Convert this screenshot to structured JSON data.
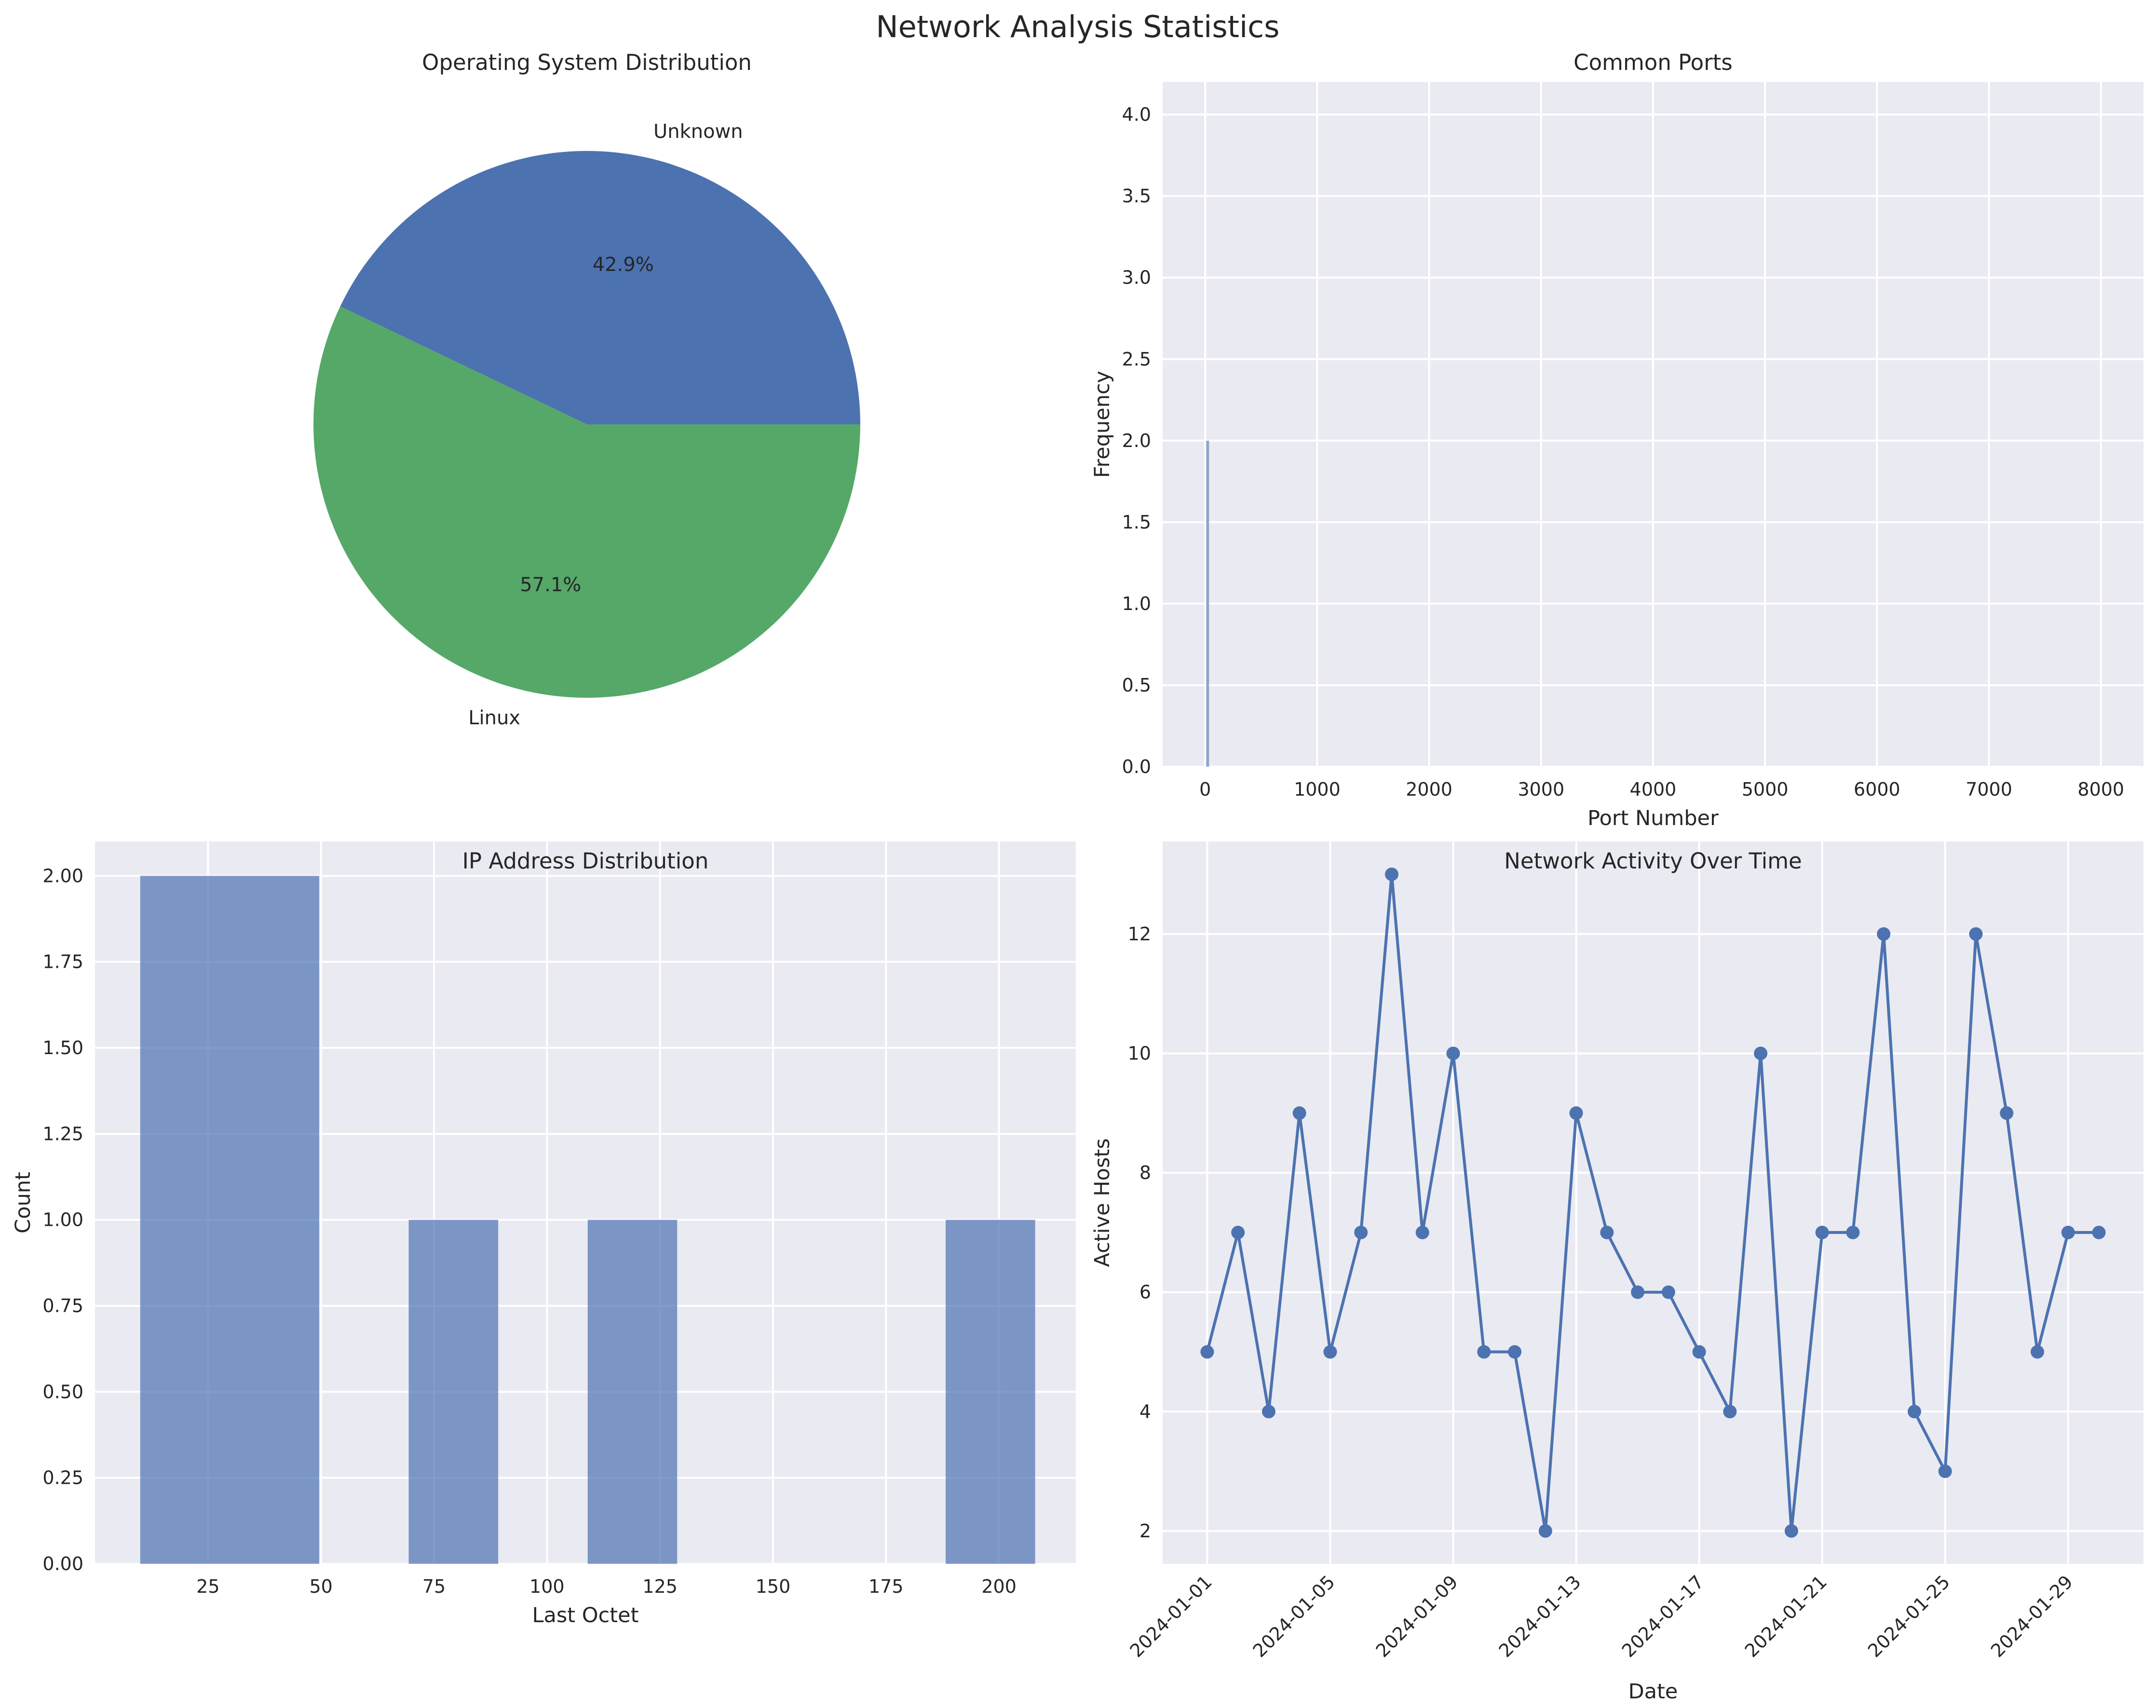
{
  "figure": {
    "title": "Network Analysis Statistics"
  },
  "colors": {
    "bg": "#eaeaf2",
    "grid": "#ffffff",
    "blue": "#4c72b0",
    "green": "#55a868",
    "hist": "#7b94c1"
  },
  "chart_data": [
    {
      "type": "pie",
      "title": "Operating System Distribution",
      "labels": [
        "Unknown",
        "Linux"
      ],
      "values": [
        42.9,
        57.1
      ],
      "autopct": [
        "42.9%",
        "57.1%"
      ],
      "colors": [
        "#4c72b0",
        "#55a868"
      ]
    },
    {
      "type": "bar",
      "title": "Common Ports",
      "xlabel": "Port Number",
      "ylabel": "Frequency",
      "xlim": [
        -380,
        8380
      ],
      "ylim": [
        0,
        4.2
      ],
      "xticks": [
        0,
        1000,
        2000,
        3000,
        4000,
        5000,
        6000,
        7000,
        8000
      ],
      "yticks": [
        "0.0",
        "0.5",
        "1.0",
        "1.5",
        "2.0",
        "2.5",
        "3.0",
        "3.5",
        "4.0"
      ],
      "bars": [
        {
          "x": 22,
          "value": 2
        }
      ],
      "grid": true
    },
    {
      "type": "bar",
      "title": "IP Address Distribution",
      "xlabel": "Last Octet",
      "ylabel": "Count",
      "xlim": [
        0,
        217
      ],
      "ylim": [
        0,
        2.1
      ],
      "xticks": [
        25,
        50,
        75,
        100,
        125,
        150,
        175,
        200
      ],
      "yticks": [
        "0.00",
        "0.25",
        "0.50",
        "0.75",
        "1.00",
        "1.25",
        "1.50",
        "1.75",
        "2.00"
      ],
      "bins": [
        {
          "from": 10,
          "to": 49.6,
          "count": 2
        },
        {
          "from": 69.4,
          "to": 89.2,
          "count": 1
        },
        {
          "from": 109,
          "to": 128.8,
          "count": 1
        },
        {
          "from": 188.2,
          "to": 208,
          "count": 1
        }
      ],
      "grid": true
    },
    {
      "type": "line",
      "title": "Network Activity Over Time",
      "xlabel": "Date",
      "ylabel": "Active Hosts",
      "ylim": [
        1.45,
        13.55
      ],
      "yticks": [
        "2",
        "4",
        "6",
        "8",
        "10",
        "12"
      ],
      "xticks": [
        "2024-01-01",
        "2024-01-05",
        "2024-01-09",
        "2024-01-13",
        "2024-01-17",
        "2024-01-21",
        "2024-01-25",
        "2024-01-29"
      ],
      "x": [
        "2024-01-01",
        "2024-01-02",
        "2024-01-03",
        "2024-01-04",
        "2024-01-05",
        "2024-01-06",
        "2024-01-07",
        "2024-01-08",
        "2024-01-09",
        "2024-01-10",
        "2024-01-11",
        "2024-01-12",
        "2024-01-13",
        "2024-01-14",
        "2024-01-15",
        "2024-01-16",
        "2024-01-17",
        "2024-01-18",
        "2024-01-19",
        "2024-01-20",
        "2024-01-21",
        "2024-01-22",
        "2024-01-23",
        "2024-01-24",
        "2024-01-25",
        "2024-01-26",
        "2024-01-27",
        "2024-01-28",
        "2024-01-29",
        "2024-01-30"
      ],
      "values": [
        5,
        7,
        4,
        9,
        5,
        7,
        13,
        7,
        10,
        5,
        5,
        2,
        9,
        7,
        6,
        6,
        5,
        4,
        10,
        2,
        7,
        7,
        12,
        4,
        3,
        12,
        9,
        5,
        7,
        7
      ],
      "grid": true
    }
  ]
}
